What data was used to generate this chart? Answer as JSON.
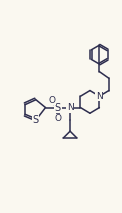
{
  "bg_color": "#faf8f0",
  "bond_color": "#2d2d4e",
  "atom_color": "#2d2d4e",
  "bond_width": 1.1,
  "fig_width": 1.22,
  "fig_height": 2.13,
  "dpi": 100,
  "font_size": 6.5,
  "xlim": [
    0,
    10
  ],
  "ylim": [
    0,
    17
  ]
}
